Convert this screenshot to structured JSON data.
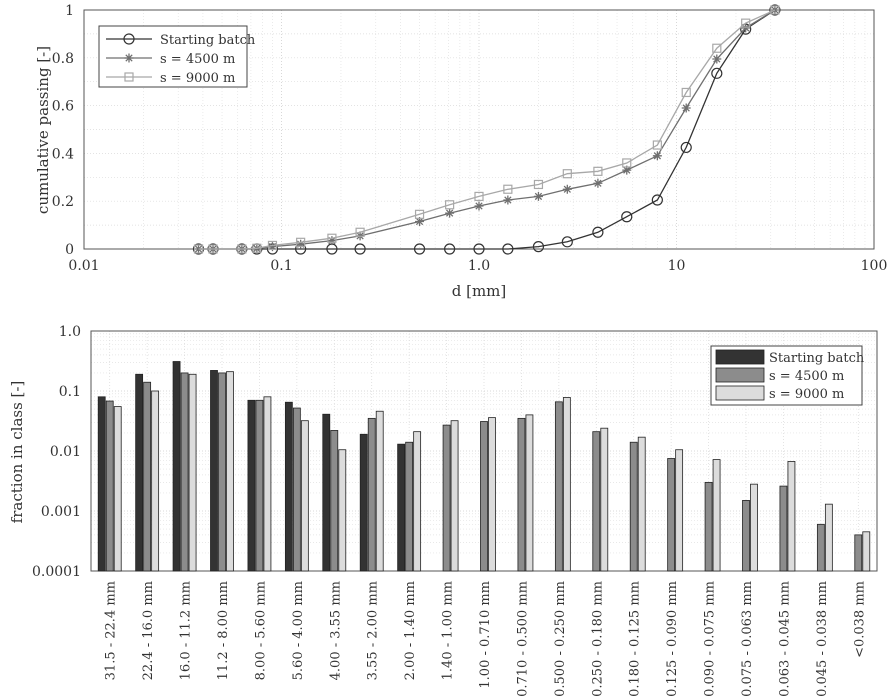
{
  "chart_data": [
    {
      "type": "line",
      "xscale": "log",
      "xlim": [
        0.01,
        100
      ],
      "ylim": [
        0,
        1
      ],
      "xlabel": "d [mm]",
      "ylabel": "cumulative passing [-]",
      "xticks": [
        0.01,
        0.1,
        1.0,
        10,
        100
      ],
      "xtick_labels": [
        "0.01",
        "0.1",
        "1.0",
        "10",
        "100"
      ],
      "yticks": [
        0,
        0.2,
        0.4,
        0.6,
        0.8,
        1
      ],
      "ytick_labels": [
        "0",
        "0.2",
        "0.4",
        "0.6",
        "0.8",
        "1"
      ],
      "grid": true,
      "legend_position": "top-left",
      "x": [
        0.038,
        0.045,
        0.063,
        0.075,
        0.09,
        0.125,
        0.18,
        0.25,
        0.5,
        0.71,
        1.0,
        1.4,
        2.0,
        2.8,
        4.0,
        5.6,
        8.0,
        11.2,
        16.0,
        22.4,
        31.5
      ],
      "series": [
        {
          "name": "Starting batch",
          "marker": "circle",
          "color": "#333333",
          "values": [
            0,
            0,
            0,
            0,
            0,
            0,
            0,
            0,
            0,
            0,
            0,
            0,
            0.01,
            0.03,
            0.07,
            0.135,
            0.205,
            0.425,
            0.735,
            0.92,
            1.0
          ]
        },
        {
          "name": "s = 4500 m",
          "marker": "star",
          "color": "#6f6f6f",
          "values": [
            0,
            0,
            0,
            0.002,
            0.01,
            0.02,
            0.035,
            0.055,
            0.115,
            0.15,
            0.18,
            0.205,
            0.22,
            0.25,
            0.275,
            0.33,
            0.39,
            0.59,
            0.795,
            0.925,
            1.0
          ]
        },
        {
          "name": "s = 9000 m",
          "marker": "square",
          "color": "#a8a8a8",
          "values": [
            0,
            0,
            0,
            0.003,
            0.015,
            0.028,
            0.045,
            0.07,
            0.145,
            0.185,
            0.22,
            0.25,
            0.27,
            0.315,
            0.325,
            0.36,
            0.435,
            0.655,
            0.84,
            0.945,
            1.0
          ]
        }
      ]
    },
    {
      "type": "bar",
      "yscale": "log",
      "ylim": [
        0.0001,
        1.0
      ],
      "ylabel": "fraction in class [-]",
      "yticks": [
        0.0001,
        0.001,
        0.01,
        0.1,
        1.0
      ],
      "ytick_labels": [
        "0.0001",
        "0.001",
        "0.01",
        "0.1",
        "1.0"
      ],
      "grid": true,
      "legend_position": "top-right",
      "categories": [
        "31.5 - 22.4 mm",
        "22.4 - 16.0 mm",
        "16.0 - 11.2 mm",
        "11.2 - 8.00 mm",
        "8.00 - 5.60 mm",
        "5.60 - 4.00 mm",
        "4.00 - 3.55 mm",
        "3.55 - 2.00 mm",
        "2.00 - 1.40 mm",
        "1.40 - 1.00 mm",
        "1.00 - 0.710 mm",
        "0.710 - 0.500 mm",
        "0.500 - 0.250 mm",
        "0.250 - 0.180 mm",
        "0.180 - 0.125 mm",
        "0.125 - 0.090 mm",
        "0.090 - 0.075 mm",
        "0.075 - 0.063 mm",
        "0.063 - 0.045 mm",
        "0.045 - 0.038 mm",
        "<0.038 mm"
      ],
      "series": [
        {
          "name": "Starting batch",
          "color": "#333333",
          "values": [
            0.08,
            0.19,
            0.31,
            0.22,
            0.07,
            0.065,
            0.041,
            0.019,
            0.013,
            null,
            null,
            null,
            null,
            null,
            null,
            null,
            null,
            null,
            null,
            null,
            null
          ]
        },
        {
          "name": "s = 4500 m",
          "color": "#8c8c8c",
          "values": [
            0.068,
            0.14,
            0.2,
            0.2,
            0.07,
            0.052,
            0.022,
            0.035,
            0.014,
            0.027,
            0.031,
            0.035,
            0.066,
            0.021,
            0.014,
            0.0075,
            0.003,
            0.0015,
            0.0026,
            0.0006,
            0.0004
          ]
        },
        {
          "name": "s = 9000 m",
          "color": "#dcdcdc",
          "values": [
            0.055,
            0.1,
            0.19,
            0.21,
            0.08,
            0.032,
            0.0105,
            0.046,
            0.021,
            0.032,
            0.036,
            0.04,
            0.078,
            0.024,
            0.017,
            0.0105,
            0.0072,
            0.0028,
            0.0067,
            0.0013,
            0.00045
          ]
        }
      ]
    }
  ]
}
